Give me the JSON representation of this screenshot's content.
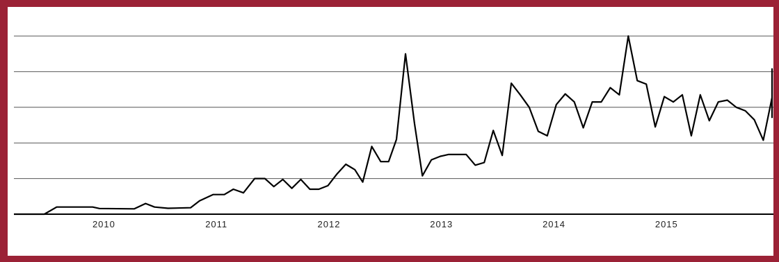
{
  "colors": {
    "frame": "#9b2236",
    "grid": "#555555",
    "line": "#000000",
    "background": "#ffffff"
  },
  "chart_data": {
    "type": "line",
    "title": "",
    "xlabel": "",
    "ylabel": "",
    "xlim": [
      2009.2,
      2015.95
    ],
    "ylim": [
      0,
      100
    ],
    "grid": true,
    "x_tick_labels": [
      "2010",
      "2011",
      "2012",
      "2013",
      "2014",
      "2015"
    ],
    "x_ticks": [
      2010,
      2011,
      2012,
      2013,
      2014,
      2015
    ],
    "y_grid": [
      20,
      40,
      60,
      80,
      100
    ],
    "series": [
      {
        "values": [
          [
            2009.2,
            0
          ],
          [
            2009.47,
            0
          ],
          [
            2009.58,
            4
          ],
          [
            2009.9,
            4
          ],
          [
            2009.96,
            3.2
          ],
          [
            2010.27,
            3
          ],
          [
            2010.37,
            6
          ],
          [
            2010.45,
            4
          ],
          [
            2010.57,
            3.3
          ],
          [
            2010.77,
            3.6
          ],
          [
            2010.85,
            7.5
          ],
          [
            2010.97,
            11
          ],
          [
            2011.07,
            11
          ],
          [
            2011.15,
            14
          ],
          [
            2011.24,
            12
          ],
          [
            2011.34,
            20
          ],
          [
            2011.43,
            20
          ],
          [
            2011.51,
            15.5
          ],
          [
            2011.59,
            19.5
          ],
          [
            2011.67,
            14.5
          ],
          [
            2011.75,
            19.5
          ],
          [
            2011.83,
            14
          ],
          [
            2011.91,
            14
          ],
          [
            2011.99,
            16
          ],
          [
            2012.07,
            22.5
          ],
          [
            2012.15,
            28
          ],
          [
            2012.23,
            25
          ],
          [
            2012.3,
            18
          ],
          [
            2012.38,
            38
          ],
          [
            2012.46,
            29.5
          ],
          [
            2012.53,
            29.5
          ],
          [
            2012.6,
            42
          ],
          [
            2012.68,
            90
          ],
          [
            2012.76,
            51
          ],
          [
            2012.83,
            21.5
          ],
          [
            2012.91,
            30.5
          ],
          [
            2012.99,
            32.5
          ],
          [
            2013.06,
            33.5
          ],
          [
            2013.14,
            33.5
          ],
          [
            2013.22,
            33.5
          ],
          [
            2013.3,
            27.5
          ],
          [
            2013.38,
            29
          ],
          [
            2013.46,
            47
          ],
          [
            2013.54,
            33
          ],
          [
            2013.62,
            73.5
          ],
          [
            2013.7,
            67
          ],
          [
            2013.78,
            60
          ],
          [
            2013.86,
            46.5
          ],
          [
            2013.94,
            44
          ],
          [
            2014.02,
            61.5
          ],
          [
            2014.1,
            67.5
          ],
          [
            2014.18,
            63
          ],
          [
            2014.26,
            48.5
          ],
          [
            2014.34,
            63
          ],
          [
            2014.42,
            63
          ],
          [
            2014.5,
            71
          ],
          [
            2014.58,
            67
          ],
          [
            2014.66,
            100
          ],
          [
            2014.74,
            75
          ],
          [
            2014.82,
            73
          ],
          [
            2014.9,
            49
          ],
          [
            2014.98,
            66
          ],
          [
            2015.06,
            63
          ],
          [
            2015.14,
            67
          ],
          [
            2015.22,
            44
          ],
          [
            2015.3,
            67
          ],
          [
            2015.38,
            52.5
          ],
          [
            2015.46,
            63
          ],
          [
            2015.54,
            64
          ],
          [
            2015.62,
            60
          ],
          [
            2015.7,
            58
          ],
          [
            2015.78,
            53
          ],
          [
            2015.86,
            41.5
          ],
          [
            2015.94,
            65.5
          ],
          [
            2016.02,
            61
          ],
          [
            2016.1,
            81.5
          ],
          [
            2016.18,
            54
          ]
        ]
      }
    ]
  }
}
